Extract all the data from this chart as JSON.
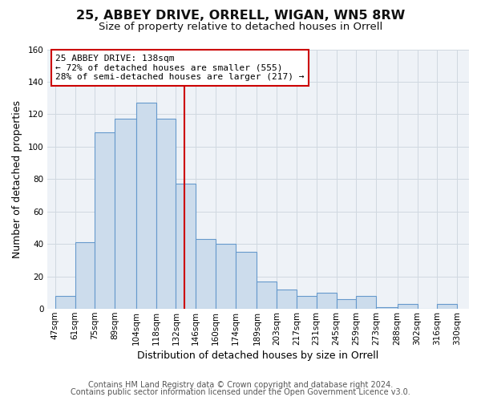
{
  "title": "25, ABBEY DRIVE, ORRELL, WIGAN, WN5 8RW",
  "subtitle": "Size of property relative to detached houses in Orrell",
  "xlabel": "Distribution of detached houses by size in Orrell",
  "ylabel": "Number of detached properties",
  "bin_labels": [
    "47sqm",
    "61sqm",
    "75sqm",
    "89sqm",
    "104sqm",
    "118sqm",
    "132sqm",
    "146sqm",
    "160sqm",
    "174sqm",
    "189sqm",
    "203sqm",
    "217sqm",
    "231sqm",
    "245sqm",
    "259sqm",
    "273sqm",
    "288sqm",
    "302sqm",
    "316sqm",
    "330sqm"
  ],
  "bin_edges": [
    47,
    61,
    75,
    89,
    104,
    118,
    132,
    146,
    160,
    174,
    189,
    203,
    217,
    231,
    245,
    259,
    273,
    288,
    302,
    316,
    330
  ],
  "values": [
    8,
    41,
    109,
    117,
    127,
    117,
    77,
    43,
    40,
    35,
    17,
    12,
    8,
    10,
    6,
    8,
    1,
    3,
    0,
    3
  ],
  "bar_color": "#ccdcec",
  "bar_edge_color": "#6699cc",
  "vline_x": 138,
  "vline_color": "#cc0000",
  "annotation_text": "25 ABBEY DRIVE: 138sqm\n← 72% of detached houses are smaller (555)\n28% of semi-detached houses are larger (217) →",
  "annotation_box_color": "#ffffff",
  "annotation_box_edge": "#cc0000",
  "footer_line1": "Contains HM Land Registry data © Crown copyright and database right 2024.",
  "footer_line2": "Contains public sector information licensed under the Open Government Licence v3.0.",
  "ylim": [
    0,
    160
  ],
  "yticks": [
    0,
    20,
    40,
    60,
    80,
    100,
    120,
    140,
    160
  ],
  "grid_color": "#d0d8e0",
  "background_color": "#ffffff",
  "plot_bg_color": "#eef2f7",
  "title_fontsize": 11.5,
  "subtitle_fontsize": 9.5,
  "axis_label_fontsize": 9,
  "tick_fontsize": 7.5,
  "footer_fontsize": 7
}
